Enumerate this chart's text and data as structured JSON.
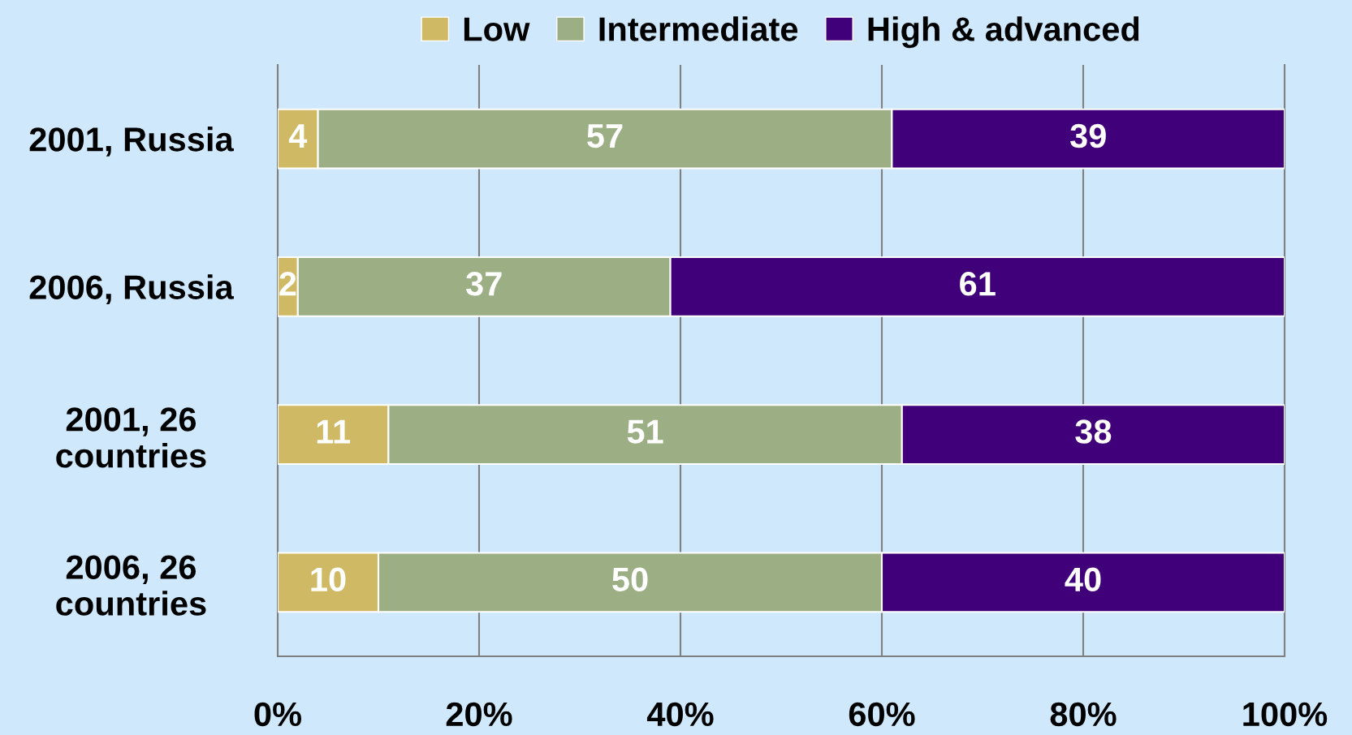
{
  "chart_data": {
    "type": "bar",
    "orientation": "horizontal",
    "stacked": true,
    "categories": [
      "2001, Russia",
      "2006, Russia",
      "2001, 26\ncountries",
      "2006, 26\ncountries"
    ],
    "series": [
      {
        "name": "Low",
        "color": "#d0b964",
        "values": [
          4,
          2,
          11,
          10
        ]
      },
      {
        "name": "Intermediate",
        "color": "#9caf84",
        "values": [
          57,
          37,
          51,
          50
        ]
      },
      {
        "name": "High & advanced",
        "color": "#40007a",
        "values": [
          39,
          61,
          38,
          40
        ]
      }
    ],
    "xlim": [
      0,
      100
    ],
    "xticks": [
      {
        "value": 0,
        "label": "0%"
      },
      {
        "value": 20,
        "label": "20%"
      },
      {
        "value": 40,
        "label": "40%"
      },
      {
        "value": 60,
        "label": "60%"
      },
      {
        "value": 80,
        "label": "80%"
      },
      {
        "value": 100,
        "label": "100%"
      }
    ],
    "grid": "x",
    "legend": "top",
    "data_labels": true
  }
}
